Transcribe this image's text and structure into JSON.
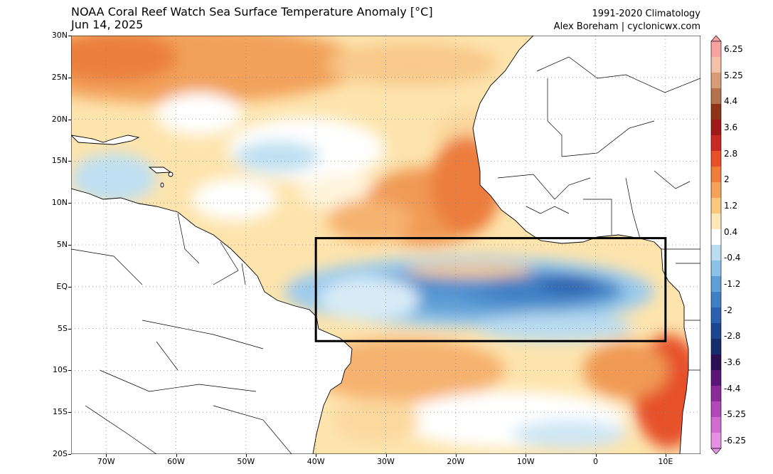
{
  "header": {
    "title": "NOAA Coral Reef Watch Sea Surface Temperature Anomaly [°C]",
    "date": "Jun 14, 2025",
    "climatology": "1991-2020 Climatology",
    "credit": "Alex Boreham | cyclonicwx.com"
  },
  "map": {
    "projection": "equirectangular",
    "lon_range": [
      -75,
      15
    ],
    "lat_range": [
      -20,
      30
    ],
    "gridlines": "dotted",
    "highlight_box": {
      "lon": [
        -40,
        10
      ],
      "lat": [
        -6.5,
        5.8
      ]
    },
    "lat_ticks": [
      {
        "value": 30,
        "label": "30N"
      },
      {
        "value": 25,
        "label": "25N"
      },
      {
        "value": 20,
        "label": "20N"
      },
      {
        "value": 15,
        "label": "15N"
      },
      {
        "value": 10,
        "label": "10N"
      },
      {
        "value": 5,
        "label": "5N"
      },
      {
        "value": 0,
        "label": "EQ"
      },
      {
        "value": -5,
        "label": "5S"
      },
      {
        "value": -10,
        "label": "10S"
      },
      {
        "value": -15,
        "label": "15S"
      },
      {
        "value": -20,
        "label": "20S"
      }
    ],
    "lon_ticks": [
      {
        "value": -70,
        "label": "70W"
      },
      {
        "value": -60,
        "label": "60W"
      },
      {
        "value": -50,
        "label": "50W"
      },
      {
        "value": -40,
        "label": "40W"
      },
      {
        "value": -30,
        "label": "30W"
      },
      {
        "value": -20,
        "label": "20W"
      },
      {
        "value": -10,
        "label": "10W"
      },
      {
        "value": 0,
        "label": "0"
      },
      {
        "value": 10,
        "label": "10E"
      }
    ]
  },
  "colorbar": {
    "labels": [
      "6.25",
      "5.25",
      "4.4",
      "3.6",
      "2.8",
      "2",
      "1.2",
      "0.4",
      "-0.4",
      "-1.2",
      "-2",
      "-2.8",
      "-3.6",
      "-4.4",
      "-5.25",
      "-6.25"
    ],
    "colors": [
      "#f7a3a0",
      "#f4c1a8",
      "#d89b77",
      "#b3724d",
      "#8e3518",
      "#a01a1a",
      "#c62b23",
      "#e6512a",
      "#f07e3a",
      "#f5a25a",
      "#fbc97e",
      "#fde7b8",
      "#ffffff",
      "#b9dcf0",
      "#8cc2e8",
      "#5f9fd6",
      "#3f7fc4",
      "#2a60ad",
      "#1c4690",
      "#152e6b",
      "#2a0f55",
      "#5a1677",
      "#8a2b99",
      "#b148b8",
      "#d06ccf",
      "#e590e0"
    ]
  }
}
